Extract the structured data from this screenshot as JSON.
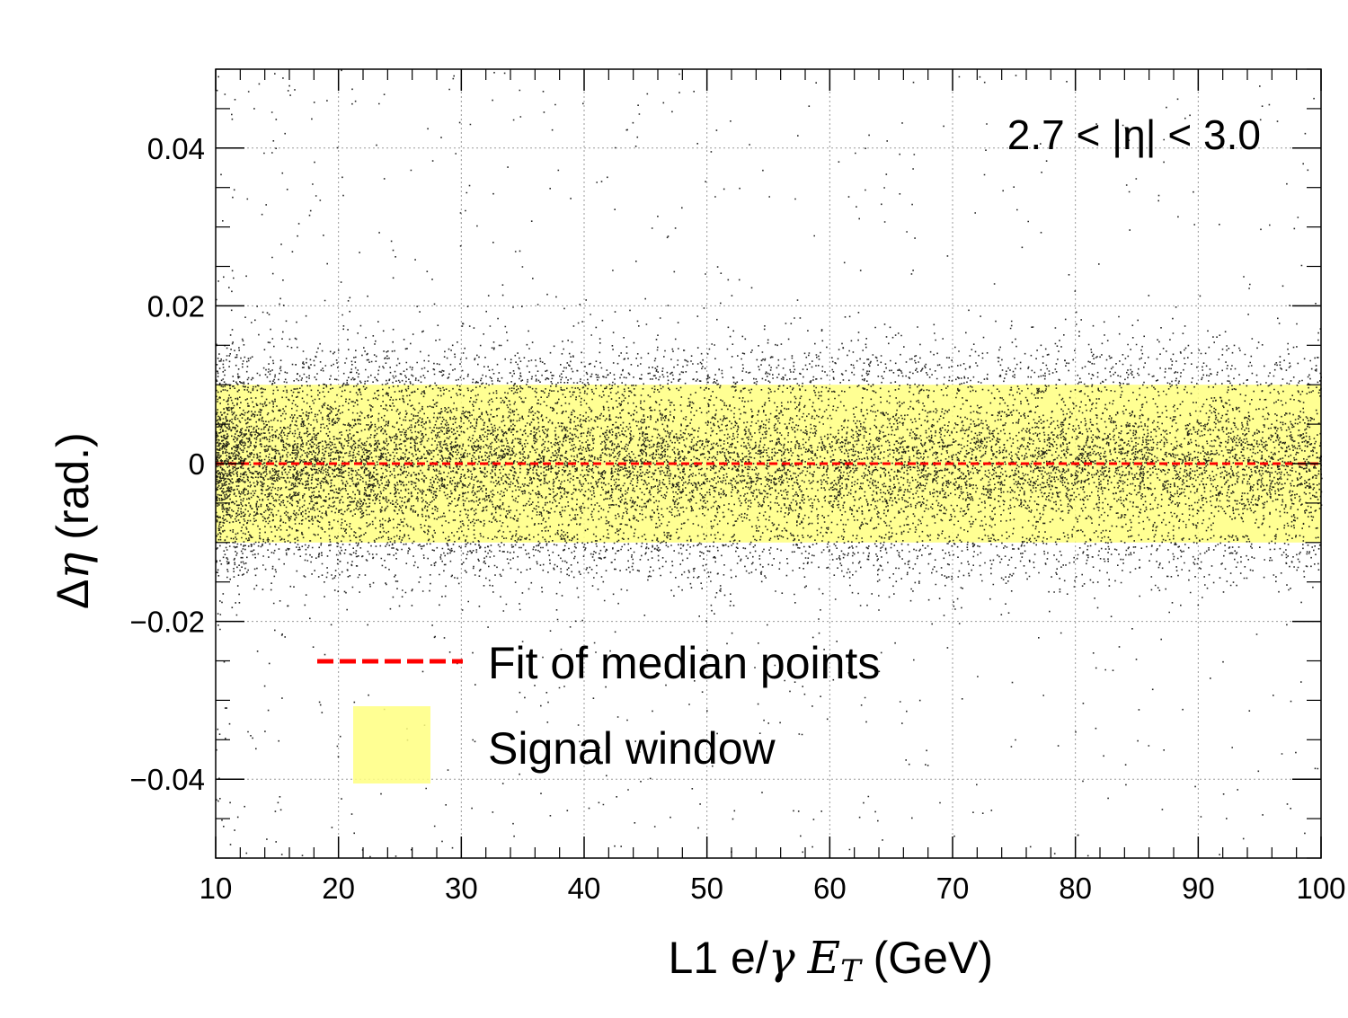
{
  "chart_data": {
    "type": "scatter",
    "title": "",
    "annotation": "2.7 < |η| < 3.0",
    "xlabel": "L1 e/γ E_T (GeV)",
    "xlabel_parts": {
      "pre": "L1 e/",
      "gamma": "γ",
      "space": " ",
      "E": "E",
      "sub": "T",
      "post": " (GeV)"
    },
    "ylabel": "Δη (rad.)",
    "ylabel_parts": {
      "delta": "Δ",
      "eta": "η",
      "post": " (rad.)"
    },
    "xlim": [
      10,
      100
    ],
    "ylim": [
      -0.05,
      0.05
    ],
    "x_ticks": [
      10,
      20,
      30,
      40,
      50,
      60,
      70,
      80,
      90,
      100
    ],
    "x_tick_labels": [
      "10",
      "20",
      "30",
      "40",
      "50",
      "60",
      "70",
      "80",
      "90",
      "100"
    ],
    "y_ticks": [
      -0.04,
      -0.02,
      0,
      0.02,
      0.04
    ],
    "y_tick_labels": [
      "−0.04",
      "−0.02",
      "0",
      "0.02",
      "0.04"
    ],
    "grid": true,
    "series": [
      {
        "name": "Fit of median points",
        "kind": "line",
        "style": "dashed",
        "color": "#ff0000",
        "x": [
          10,
          100
        ],
        "y": [
          0,
          0
        ]
      },
      {
        "name": "Signal window",
        "kind": "band",
        "color": "#ffff80",
        "x": [
          10,
          100
        ],
        "y_low": [
          -0.01,
          -0.01
        ],
        "y_high": [
          0.01,
          0.01
        ]
      }
    ],
    "scatter_points": {
      "color": "#000000",
      "description": "dense core within |Δη| < 0.01 across 10–100 GeV, widest near 10–20 GeV; sparse tails out to ±0.05",
      "core_sigma_at_10GeV": 0.0055,
      "core_sigma_at_100GeV": 0.0045,
      "tail_points": true
    },
    "legend": {
      "placement": "lower-left",
      "entries": [
        "Fit of median points",
        "Signal window"
      ]
    }
  }
}
